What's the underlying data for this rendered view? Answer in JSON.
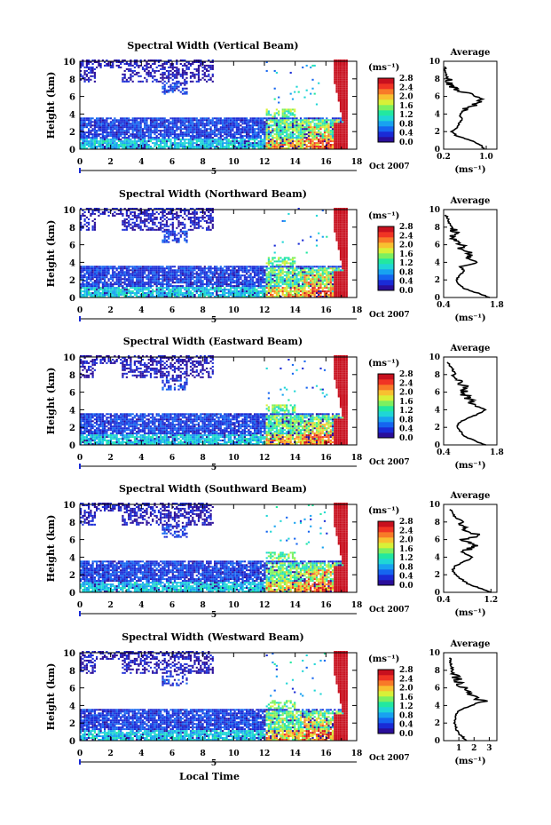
{
  "figure": {
    "xlabel": "Local Time",
    "date_label": "Oct 2007",
    "day_label": "5",
    "cbar_unit": "(ms⁻¹)",
    "avg_title": "Average",
    "avg_unit": "(ms⁻¹)",
    "colorscale": [
      "#2a0e9a",
      "#1a2bd6",
      "#1565f0",
      "#18a2f0",
      "#1fd6d6",
      "#22e8a0",
      "#7cf060",
      "#d8f038",
      "#f8c030",
      "#f87a28",
      "#f03424",
      "#c8101e"
    ]
  },
  "chart_data": [
    {
      "type": "heatmap",
      "title": "Spectral Width (Vertical Beam)",
      "xlabel": "",
      "ylabel": "Height (km)",
      "xlim": [
        0,
        18
      ],
      "ylim": [
        0,
        10
      ],
      "xticks": [
        "0",
        "2",
        "4",
        "6",
        "8",
        "10",
        "12",
        "14",
        "16",
        "18"
      ],
      "yticks": [
        "0",
        "2",
        "4",
        "6",
        "8",
        "10"
      ],
      "colorbar": {
        "ticks": [
          "0.0",
          "0.4",
          "0.8",
          "1.2",
          "1.6",
          "2.0",
          "2.4",
          "2.8"
        ],
        "vmin": 0,
        "vmax": 2.8
      },
      "average_profile": {
        "xlim": [
          0.2,
          1.2
        ],
        "xticks": [
          "0.2",
          "1.0"
        ],
        "yticks": [
          "0",
          "2",
          "4",
          "6",
          "8",
          "10"
        ],
        "x": [
          0.95,
          0.9,
          0.7,
          0.45,
          0.35,
          0.45,
          0.5,
          0.55,
          0.5,
          0.6,
          0.75,
          0.9,
          0.8,
          0.55,
          0.4,
          0.3,
          0.27,
          0.25,
          0.23,
          0.22
        ],
        "y": [
          0,
          0.5,
          1,
          1.5,
          2,
          2.5,
          3,
          3.5,
          4,
          4.5,
          5,
          5.5,
          6,
          6.5,
          7,
          7.5,
          8,
          8.5,
          9,
          9.5
        ]
      }
    },
    {
      "type": "heatmap",
      "title": "Spectral Width (Northward Beam)",
      "xlabel": "",
      "ylabel": "Height (km)",
      "xlim": [
        0,
        18
      ],
      "ylim": [
        0,
        10
      ],
      "xticks": [
        "0",
        "2",
        "4",
        "6",
        "8",
        "10",
        "12",
        "14",
        "16",
        "18"
      ],
      "yticks": [
        "0",
        "2",
        "4",
        "6",
        "8",
        "10"
      ],
      "colorbar": {
        "ticks": [
          "0.0",
          "0.4",
          "0.8",
          "1.2",
          "1.6",
          "2.0",
          "2.4",
          "2.8"
        ],
        "vmin": 0,
        "vmax": 2.8
      },
      "average_profile": {
        "xlim": [
          0.4,
          1.8
        ],
        "xticks": [
          "0.4",
          "1.8"
        ],
        "yticks": [
          "0",
          "2",
          "4",
          "6",
          "8",
          "10"
        ],
        "x": [
          1.6,
          1.3,
          0.95,
          0.8,
          0.75,
          0.8,
          0.95,
          0.85,
          1.3,
          1.0,
          1.1,
          0.85,
          0.9,
          0.75,
          0.65,
          0.7,
          0.6,
          0.55,
          0.5,
          0.45
        ],
        "y": [
          0,
          0.5,
          1,
          1.5,
          2,
          2.5,
          3,
          3.5,
          4,
          4.5,
          5,
          5.5,
          6,
          6.5,
          7,
          7.5,
          8,
          8.5,
          9,
          9.5
        ]
      }
    },
    {
      "type": "heatmap",
      "title": "Spectral Width (Eastward Beam)",
      "xlabel": "",
      "ylabel": "Height (km)",
      "xlim": [
        0,
        18
      ],
      "ylim": [
        0,
        10
      ],
      "xticks": [
        "0",
        "2",
        "4",
        "6",
        "8",
        "10",
        "12",
        "14",
        "16",
        "18"
      ],
      "yticks": [
        "0",
        "2",
        "4",
        "6",
        "8",
        "10"
      ],
      "colorbar": {
        "ticks": [
          "0.0",
          "0.4",
          "0.8",
          "1.2",
          "1.6",
          "2.0",
          "2.4",
          "2.8"
        ],
        "vmin": 0,
        "vmax": 2.8
      },
      "average_profile": {
        "xlim": [
          0.4,
          1.8
        ],
        "xticks": [
          "0.4",
          "1.8"
        ],
        "yticks": [
          "0",
          "2",
          "4",
          "6",
          "8",
          "10"
        ],
        "x": [
          1.5,
          1.2,
          0.95,
          0.85,
          0.75,
          0.8,
          1.0,
          1.3,
          1.5,
          1.2,
          1.1,
          1.0,
          0.9,
          1.0,
          0.8,
          0.85,
          0.7,
          0.65,
          0.55,
          0.5
        ],
        "y": [
          0,
          0.5,
          1,
          1.5,
          2,
          2.5,
          3,
          3.5,
          4,
          4.5,
          5,
          5.5,
          6,
          6.5,
          7,
          7.5,
          8,
          8.5,
          9,
          9.5
        ]
      }
    },
    {
      "type": "heatmap",
      "title": "Spectral Width (Southward Beam)",
      "xlabel": "",
      "ylabel": "Height (km)",
      "xlim": [
        0,
        18
      ],
      "ylim": [
        0,
        10
      ],
      "xticks": [
        "0",
        "2",
        "4",
        "6",
        "8",
        "10",
        "12",
        "14",
        "16",
        "18"
      ],
      "yticks": [
        "0",
        "2",
        "4",
        "6",
        "8",
        "10"
      ],
      "colorbar": {
        "ticks": [
          "0.0",
          "0.4",
          "0.8",
          "1.2",
          "1.6",
          "2.0",
          "2.4",
          "2.8"
        ],
        "vmin": 0,
        "vmax": 2.8
      },
      "average_profile": {
        "xlim": [
          0.4,
          1.3
        ],
        "xticks": [
          "0.4",
          "1.2"
        ],
        "yticks": [
          "0",
          "2",
          "4",
          "6",
          "8",
          "10"
        ],
        "x": [
          1.2,
          1.0,
          0.8,
          0.7,
          0.6,
          0.55,
          0.6,
          0.75,
          0.9,
          0.7,
          0.85,
          0.95,
          0.7,
          1.0,
          0.8,
          0.7,
          0.75,
          0.6,
          0.55,
          0.5
        ],
        "y": [
          0,
          0.5,
          1,
          1.5,
          2,
          2.5,
          3,
          3.5,
          4,
          4.5,
          5,
          5.5,
          6,
          6.5,
          7,
          7.5,
          8,
          8.5,
          9,
          9.5
        ]
      }
    },
    {
      "type": "heatmap",
      "title": "Spectral Width (Westward Beam)",
      "xlabel": "Local Time",
      "ylabel": "Height (km)",
      "xlim": [
        0,
        18
      ],
      "ylim": [
        0,
        10
      ],
      "xticks": [
        "0",
        "2",
        "4",
        "6",
        "8",
        "10",
        "12",
        "14",
        "16",
        "18"
      ],
      "yticks": [
        "0",
        "2",
        "4",
        "6",
        "8",
        "10"
      ],
      "colorbar": {
        "ticks": [
          "0.0",
          "0.4",
          "0.8",
          "1.2",
          "1.6",
          "2.0",
          "2.4",
          "2.8"
        ],
        "vmin": 0,
        "vmax": 2.8
      },
      "average_profile": {
        "xlim": [
          0,
          3.5
        ],
        "xticks": [
          "1",
          "2",
          "3"
        ],
        "yticks": [
          "0",
          "2",
          "4",
          "6",
          "8",
          "10"
        ],
        "x": [
          1.5,
          1.2,
          0.9,
          0.8,
          0.7,
          0.75,
          0.8,
          1.1,
          1.8,
          2.6,
          1.9,
          1.5,
          1.3,
          1.0,
          0.9,
          0.7,
          0.6,
          0.5,
          0.45,
          0.4
        ],
        "y": [
          0,
          0.5,
          1,
          1.5,
          2,
          2.5,
          3,
          3.5,
          4,
          4.5,
          5,
          5.5,
          6,
          6.5,
          7,
          7.5,
          8,
          8.5,
          9,
          9.5
        ]
      }
    }
  ]
}
